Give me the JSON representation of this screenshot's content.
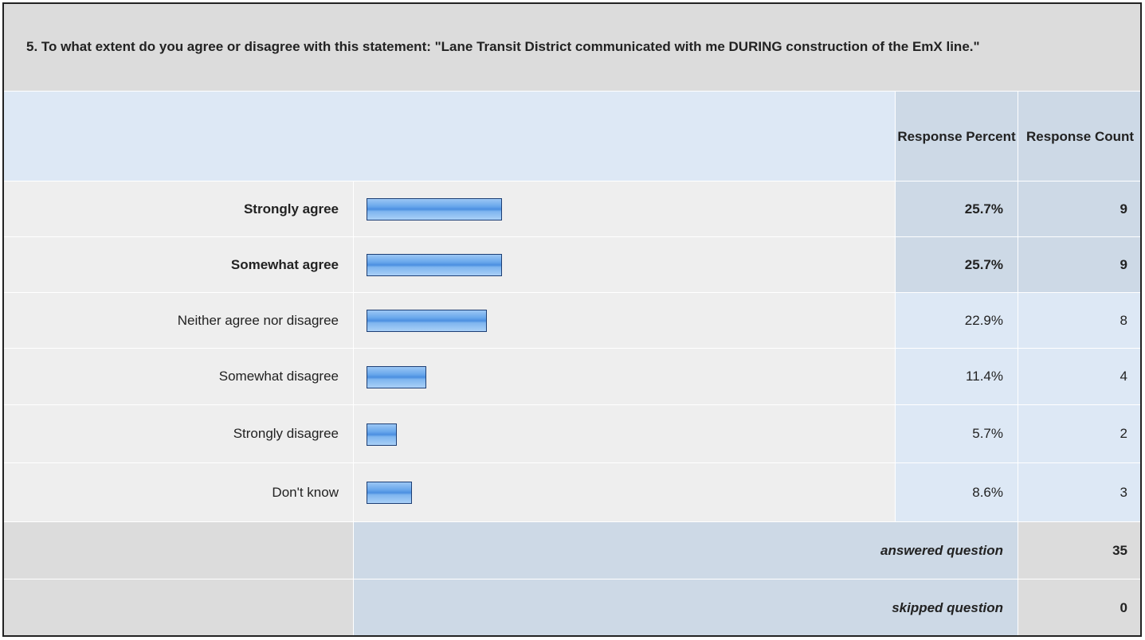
{
  "question": {
    "title": "5. To what extent do you agree or disagree with this statement: \"Lane Transit District communicated with me DURING construction of the EmX line.\""
  },
  "table": {
    "headers": [
      "Response Percent",
      "Response Count"
    ],
    "rows": [
      {
        "label": "Strongly agree",
        "percent": 25.7,
        "percent_label": "25.7%",
        "count": 9
      },
      {
        "label": "Somewhat agree",
        "percent": 25.7,
        "percent_label": "25.7%",
        "count": 9
      },
      {
        "label": "Neither agree nor disagree",
        "percent": 22.9,
        "percent_label": "22.9%",
        "count": 8
      },
      {
        "label": "Somewhat disagree",
        "percent": 11.4,
        "percent_label": "11.4%",
        "count": 4
      },
      {
        "label": "Strongly disagree",
        "percent": 5.7,
        "percent_label": "5.7%",
        "count": 2
      },
      {
        "label": "Don't know",
        "percent": 8.6,
        "percent_label": "8.6%",
        "count": 3
      }
    ],
    "footer": [
      {
        "label": "answered question",
        "count": 35
      },
      {
        "label": "skipped question",
        "count": 0
      }
    ]
  }
}
